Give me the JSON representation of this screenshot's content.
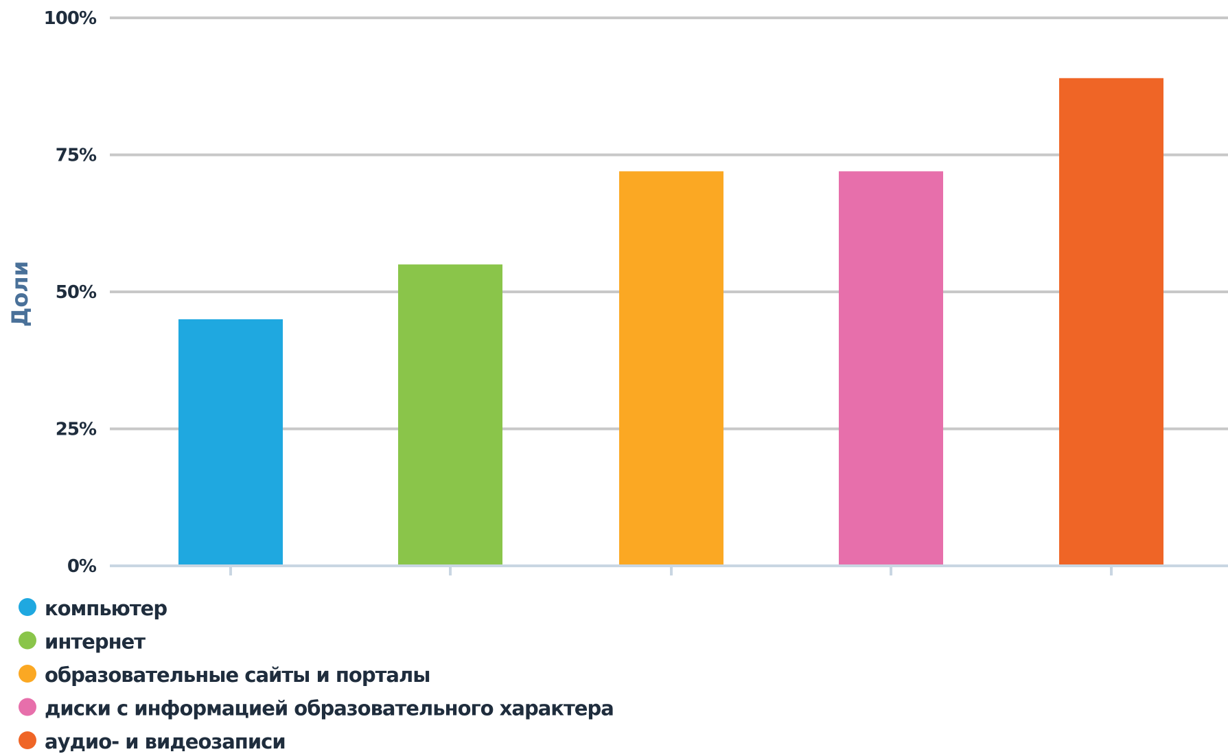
{
  "chart_data": {
    "type": "bar",
    "ylabel": "Доли",
    "ylim": [
      0,
      100
    ],
    "y_ticks": [
      {
        "value": 0,
        "label": "0%"
      },
      {
        "value": 25,
        "label": "25%"
      },
      {
        "value": 50,
        "label": "50%"
      },
      {
        "value": 75,
        "label": "75%"
      },
      {
        "value": 100,
        "label": "100%"
      }
    ],
    "series": [
      {
        "name": "компьютер",
        "value": 45,
        "color": "#1fa8e0"
      },
      {
        "name": "интернет",
        "value": 55,
        "color": "#8ac54a"
      },
      {
        "name": "образовательные сайты и порталы",
        "value": 72,
        "color": "#fba823"
      },
      {
        "name": "диски с информацией образовательного характера",
        "value": 72,
        "color": "#e76fab"
      },
      {
        "name": "аудио- и видеозаписи",
        "value": 89,
        "color": "#ef6526"
      }
    ],
    "grid": true,
    "legend_placement": "bottom-left"
  }
}
